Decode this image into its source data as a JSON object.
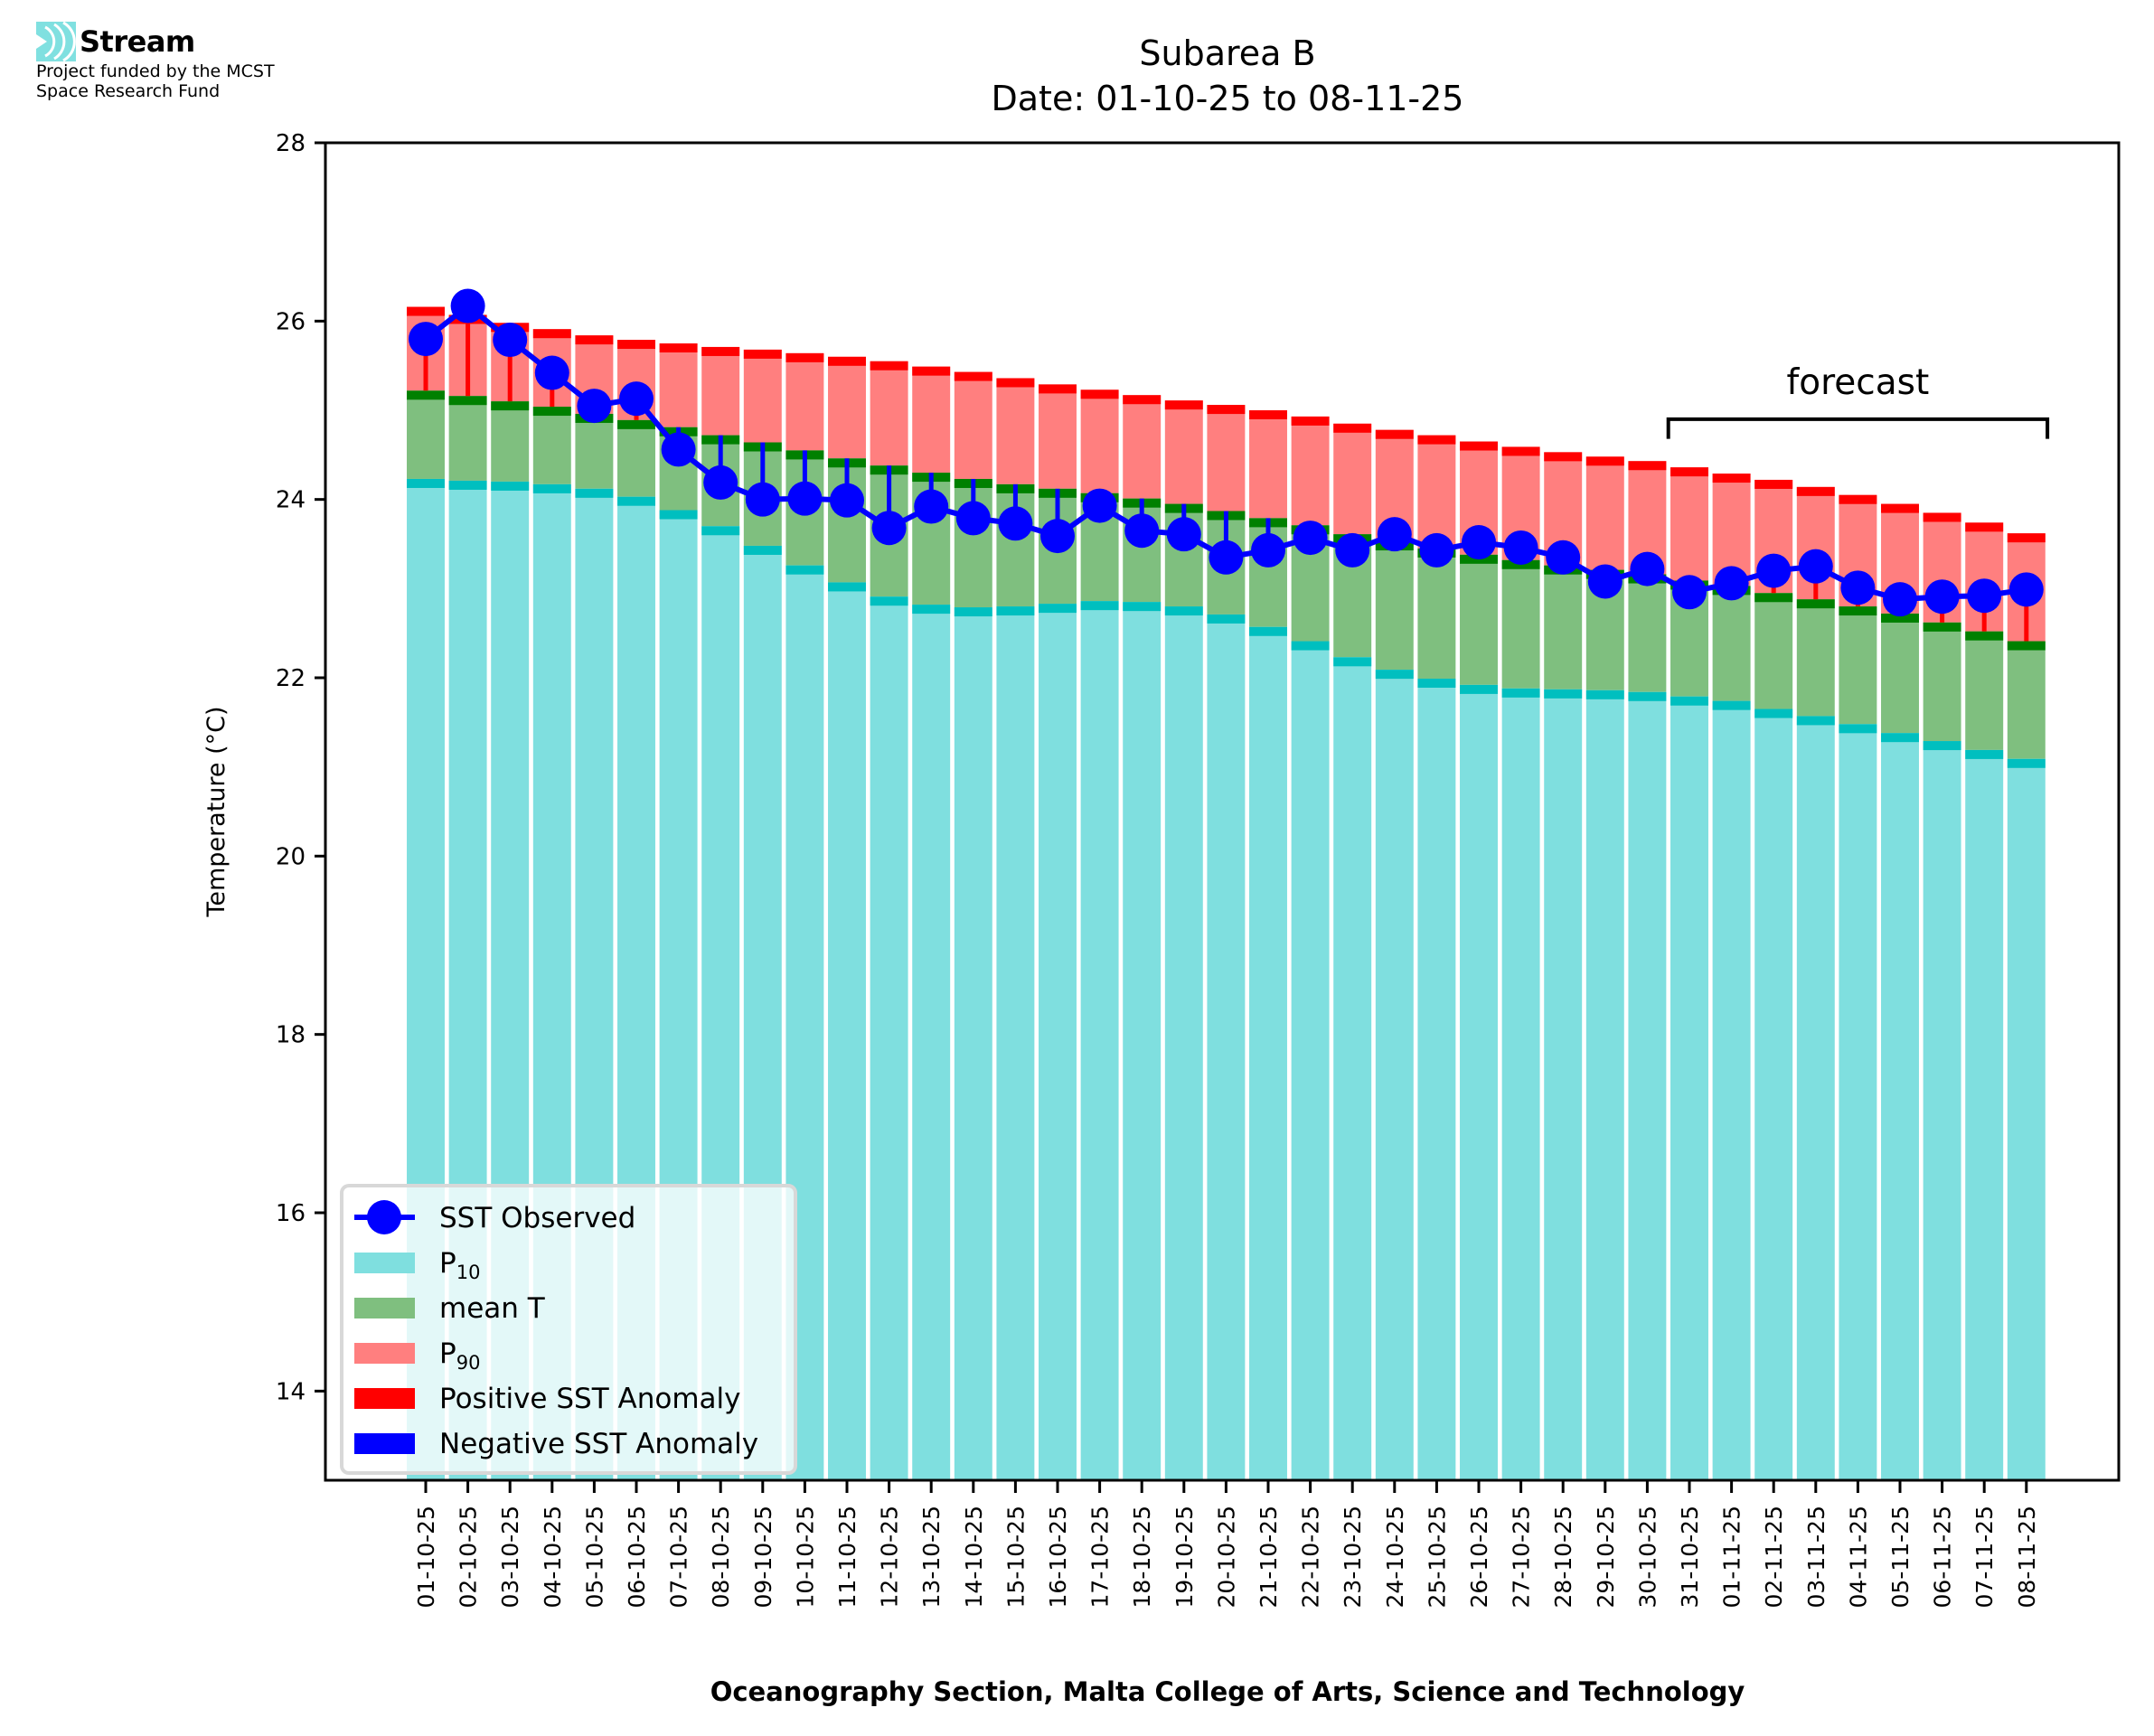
{
  "header": {
    "logo_name": "Stream",
    "logo_icon": "stream-waves-icon",
    "funding_line_1": "Project funded by the MCST",
    "funding_line_2": "Space Research Fund"
  },
  "colors": {
    "p10": "#7fdfdf",
    "p10_cap": "#00bfbf",
    "mean": "#7fbf7f",
    "mean_cap": "#008000",
    "p90": "#ff7f7f",
    "p90_cap": "#ff0000",
    "sst": "#0000ff",
    "positive_anomaly": "#ff0000",
    "negative_anomaly": "#0000ff"
  },
  "chart_data": {
    "type": "bar",
    "title": "Subarea B",
    "subtitle": "Date: 01-10-25 to 08-11-25",
    "xlabel": "Oceanography Section, Malta College of Arts, Science and Technology",
    "ylabel": "Temperature (°C)",
    "ylim": [
      13,
      28
    ],
    "yticks": [
      14,
      16,
      18,
      20,
      22,
      24,
      26,
      28
    ],
    "grid": false,
    "legend_position": "lower-left",
    "categories": [
      "01-10-25",
      "02-10-25",
      "03-10-25",
      "04-10-25",
      "05-10-25",
      "06-10-25",
      "07-10-25",
      "08-10-25",
      "09-10-25",
      "10-10-25",
      "11-10-25",
      "12-10-25",
      "13-10-25",
      "14-10-25",
      "15-10-25",
      "16-10-25",
      "17-10-25",
      "18-10-25",
      "19-10-25",
      "20-10-25",
      "21-10-25",
      "22-10-25",
      "23-10-25",
      "24-10-25",
      "25-10-25",
      "26-10-25",
      "27-10-25",
      "28-10-25",
      "29-10-25",
      "30-10-25",
      "31-10-25",
      "01-11-25",
      "02-11-25",
      "03-11-25",
      "04-11-25",
      "05-11-25",
      "06-11-25",
      "07-11-25",
      "08-11-25"
    ],
    "series": [
      {
        "name": "P10",
        "label_base": "P",
        "label_sub": "10",
        "kind": "bar",
        "values": [
          24.23,
          24.21,
          24.2,
          24.17,
          24.12,
          24.03,
          23.88,
          23.7,
          23.48,
          23.26,
          23.07,
          22.91,
          22.82,
          22.79,
          22.8,
          22.83,
          22.86,
          22.85,
          22.8,
          22.71,
          22.57,
          22.41,
          22.23,
          22.09,
          21.99,
          21.92,
          21.88,
          21.87,
          21.86,
          21.84,
          21.79,
          21.74,
          21.65,
          21.57,
          21.48,
          21.38,
          21.29,
          21.19,
          21.09
        ]
      },
      {
        "name": "mean T",
        "label_base": "mean T",
        "label_sub": "",
        "kind": "bar",
        "values": [
          25.22,
          25.16,
          25.1,
          25.04,
          24.96,
          24.89,
          24.81,
          24.72,
          24.64,
          24.55,
          24.46,
          24.38,
          24.3,
          24.23,
          24.17,
          24.12,
          24.07,
          24.01,
          23.95,
          23.87,
          23.79,
          23.71,
          23.61,
          23.53,
          23.45,
          23.38,
          23.32,
          23.26,
          23.21,
          23.16,
          23.09,
          23.03,
          22.95,
          22.88,
          22.8,
          22.72,
          22.62,
          22.52,
          22.41
        ]
      },
      {
        "name": "P90",
        "label_base": "P",
        "label_sub": "90",
        "kind": "bar",
        "values": [
          26.16,
          26.07,
          25.98,
          25.91,
          25.84,
          25.79,
          25.75,
          25.71,
          25.68,
          25.64,
          25.6,
          25.55,
          25.49,
          25.43,
          25.36,
          25.29,
          25.23,
          25.17,
          25.11,
          25.06,
          25.0,
          24.93,
          24.85,
          24.78,
          24.72,
          24.65,
          24.59,
          24.53,
          24.48,
          24.43,
          24.36,
          24.29,
          24.22,
          24.14,
          24.05,
          23.95,
          23.85,
          23.74,
          23.62
        ]
      },
      {
        "name": "SST Observed",
        "label_base": "SST Observed",
        "label_sub": "",
        "kind": "line",
        "values": [
          25.8,
          26.17,
          25.79,
          25.42,
          25.05,
          25.13,
          24.56,
          24.19,
          24.0,
          24.01,
          23.99,
          23.68,
          23.92,
          23.79,
          23.73,
          23.59,
          23.93,
          23.65,
          23.61,
          23.35,
          23.43,
          23.57,
          23.43,
          23.61,
          23.43,
          23.52,
          23.46,
          23.35,
          23.08,
          23.22,
          22.96,
          23.06,
          23.2,
          23.25,
          23.01,
          22.88,
          22.91,
          22.92,
          22.99
        ]
      }
    ],
    "legend": [
      {
        "label": "SST Observed",
        "sub": "",
        "swatch": "line-marker",
        "color_key": "sst"
      },
      {
        "label": "P",
        "sub": "10",
        "swatch": "patch",
        "color_key": "p10"
      },
      {
        "label": "mean T",
        "sub": "",
        "swatch": "patch",
        "color_key": "mean"
      },
      {
        "label": "P",
        "sub": "90",
        "swatch": "patch",
        "color_key": "p90"
      },
      {
        "label": "Positive SST Anomaly",
        "sub": "",
        "swatch": "patch",
        "color_key": "positive_anomaly"
      },
      {
        "label": "Negative SST Anomaly",
        "sub": "",
        "swatch": "patch",
        "color_key": "negative_anomaly"
      }
    ],
    "annotation": {
      "text": "forecast",
      "start_category": "31-10-25",
      "end_category": "08-11-25",
      "bracket_level": 24.9
    }
  }
}
